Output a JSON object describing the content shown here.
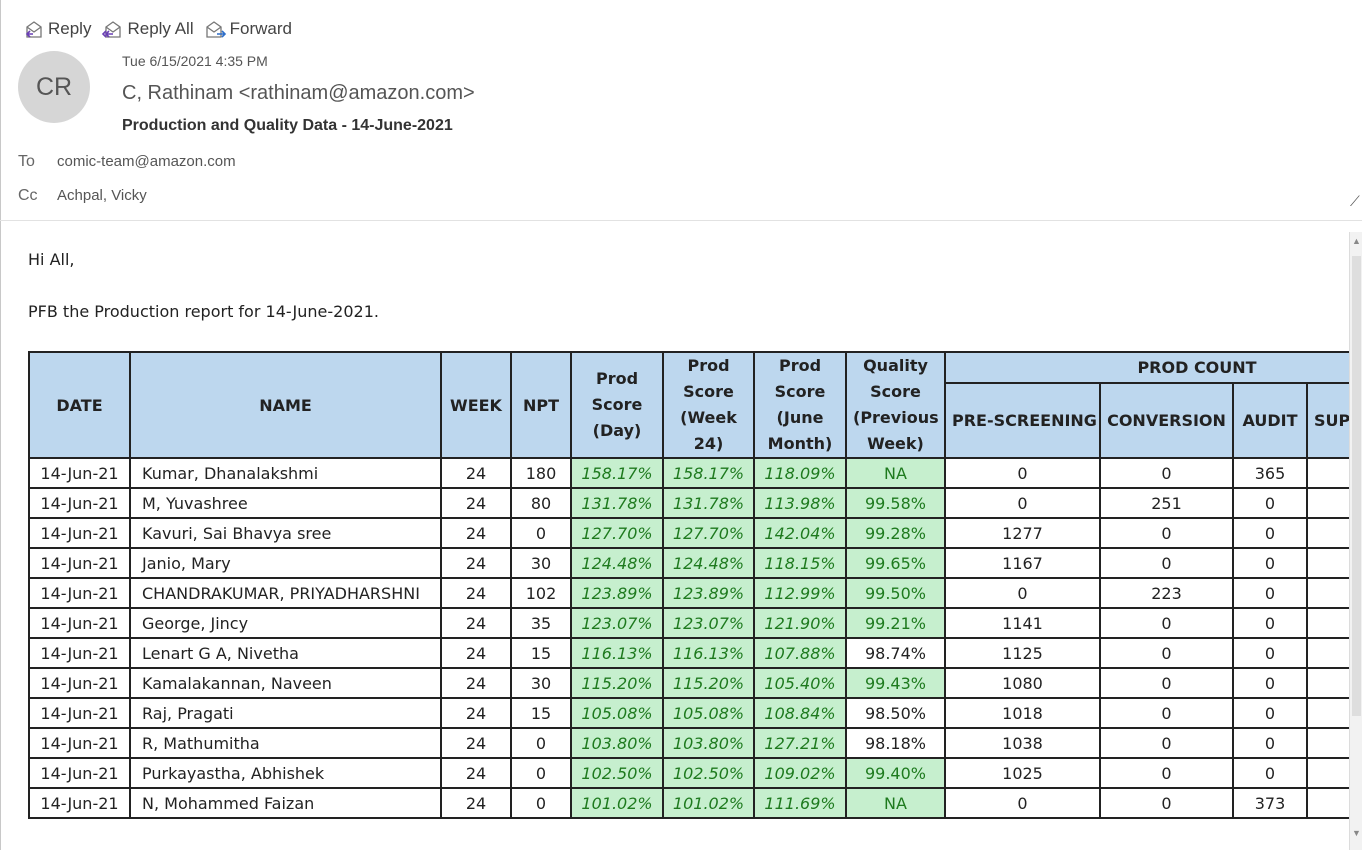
{
  "toolbar": {
    "reply": "Reply",
    "reply_all": "Reply All",
    "forward": "Forward"
  },
  "header": {
    "avatar_initials": "CR",
    "date": "Tue 6/15/2021 4:35 PM",
    "from": "C, Rathinam <rathinam@amazon.com>",
    "subject": "Production and Quality Data - 14-June-2021",
    "to_label": "To",
    "to": "comic-team@amazon.com",
    "cc_label": "Cc",
    "cc": "Achpal, Vicky"
  },
  "body": {
    "greeting": "Hi All,",
    "intro": "PFB the Production report for 14-June-2021."
  },
  "table": {
    "headers": {
      "date": "DATE",
      "name": "NAME",
      "week": "WEEK",
      "npt": "NPT",
      "prod_day": "Prod Score (Day)",
      "prod_week": "Prod Score (Week 24)",
      "prod_month": "Prod Score (June Month)",
      "quality": "Quality Score (Previous Week)",
      "prod_count": "PROD COUNT",
      "pre_screening": "PRE-SCREENING",
      "conversion": "CONVERSION",
      "audit": "AUDIT",
      "sup": "SUP"
    },
    "rows": [
      [
        "14-Jun-21",
        "Kumar, Dhanalakshmi",
        "24",
        "180",
        "158.17%",
        "158.17%",
        "118.09%",
        "NA",
        "0",
        "0",
        "365"
      ],
      [
        "14-Jun-21",
        "M, Yuvashree",
        "24",
        "80",
        "131.78%",
        "131.78%",
        "113.98%",
        "99.58%",
        "0",
        "251",
        "0"
      ],
      [
        "14-Jun-21",
        "Kavuri, Sai Bhavya sree",
        "24",
        "0",
        "127.70%",
        "127.70%",
        "142.04%",
        "99.28%",
        "1277",
        "0",
        "0"
      ],
      [
        "14-Jun-21",
        "Janio, Mary",
        "24",
        "30",
        "124.48%",
        "124.48%",
        "118.15%",
        "99.65%",
        "1167",
        "0",
        "0"
      ],
      [
        "14-Jun-21",
        "CHANDRAKUMAR, PRIYADHARSHNI",
        "24",
        "102",
        "123.89%",
        "123.89%",
        "112.99%",
        "99.50%",
        "0",
        "223",
        "0"
      ],
      [
        "14-Jun-21",
        "George, Jincy",
        "24",
        "35",
        "123.07%",
        "123.07%",
        "121.90%",
        "99.21%",
        "1141",
        "0",
        "0"
      ],
      [
        "14-Jun-21",
        "Lenart G A, Nivetha",
        "24",
        "15",
        "116.13%",
        "116.13%",
        "107.88%",
        "98.74%",
        "1125",
        "0",
        "0"
      ],
      [
        "14-Jun-21",
        "Kamalakannan, Naveen",
        "24",
        "30",
        "115.20%",
        "115.20%",
        "105.40%",
        "99.43%",
        "1080",
        "0",
        "0"
      ],
      [
        "14-Jun-21",
        "Raj, Pragati",
        "24",
        "15",
        "105.08%",
        "105.08%",
        "108.84%",
        "98.50%",
        "1018",
        "0",
        "0"
      ],
      [
        "14-Jun-21",
        "R, Mathumitha",
        "24",
        "0",
        "103.80%",
        "103.80%",
        "127.21%",
        "98.18%",
        "1038",
        "0",
        "0"
      ],
      [
        "14-Jun-21",
        "Purkayastha, Abhishek",
        "24",
        "0",
        "102.50%",
        "102.50%",
        "109.02%",
        "99.40%",
        "1025",
        "0",
        "0"
      ],
      [
        "14-Jun-21",
        "N, Mohammed Faizan",
        "24",
        "0",
        "101.02%",
        "101.02%",
        "111.69%",
        "NA",
        "0",
        "0",
        "373"
      ]
    ],
    "quality_highlight": [
      true,
      true,
      true,
      true,
      true,
      true,
      false,
      true,
      false,
      false,
      true,
      true
    ]
  },
  "colors": {
    "header_fill": "#bdd7ee",
    "highlight_fill": "#c6efce",
    "highlight_text": "#1e7a1e"
  }
}
